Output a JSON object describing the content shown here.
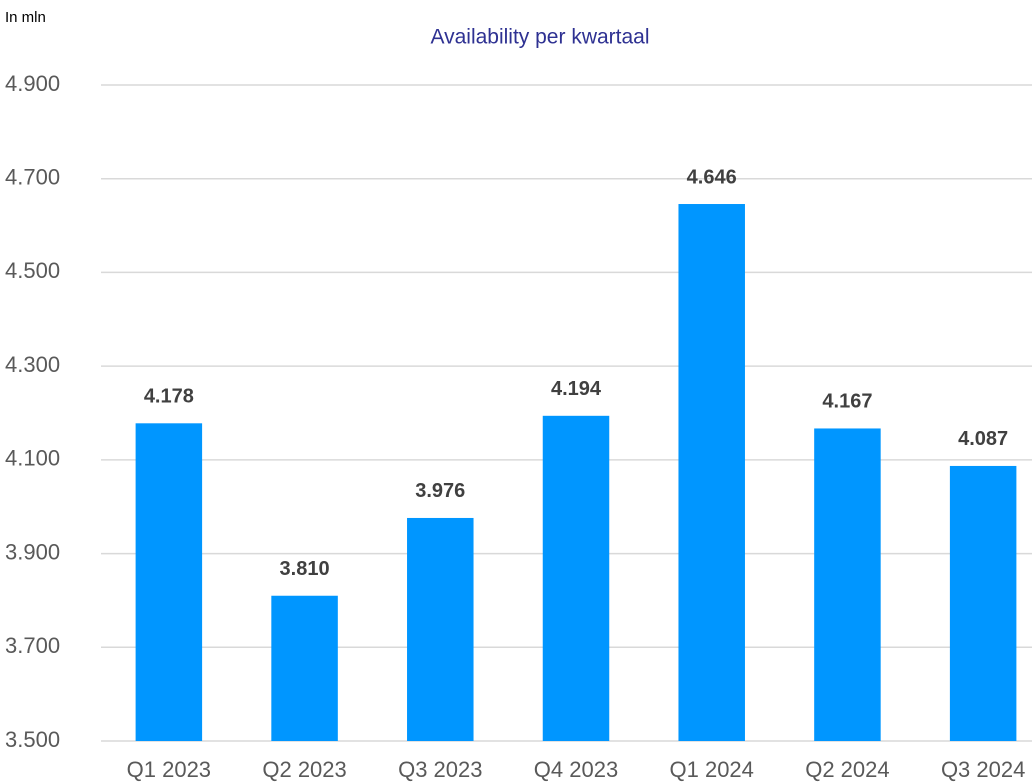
{
  "chart_data": {
    "type": "bar",
    "title": "Availability per kwartaal",
    "y_label": "In mln",
    "categories": [
      "Q1 2023",
      "Q2 2023",
      "Q3 2023",
      "Q4 2023",
      "Q1 2024",
      "Q2 2024",
      "Q3 2024"
    ],
    "values": [
      4178,
      3810,
      3976,
      4194,
      4646,
      4167,
      4087
    ],
    "value_labels": [
      "4.178",
      "3.810",
      "3.976",
      "4.194",
      "4.646",
      "4.167",
      "4.087"
    ],
    "color": "#0096ff",
    "ylim": [
      3500,
      4900
    ],
    "yticks": [
      {
        "value": 3500,
        "label": "3.500"
      },
      {
        "value": 3700,
        "label": "3.700"
      },
      {
        "value": 3900,
        "label": "3.900"
      },
      {
        "value": 4100,
        "label": "4.100"
      },
      {
        "value": 4300,
        "label": "4.300"
      },
      {
        "value": 4500,
        "label": "4.500"
      },
      {
        "value": 4700,
        "label": "4.700"
      },
      {
        "value": 4900,
        "label": "4.900"
      }
    ],
    "grid": true
  }
}
